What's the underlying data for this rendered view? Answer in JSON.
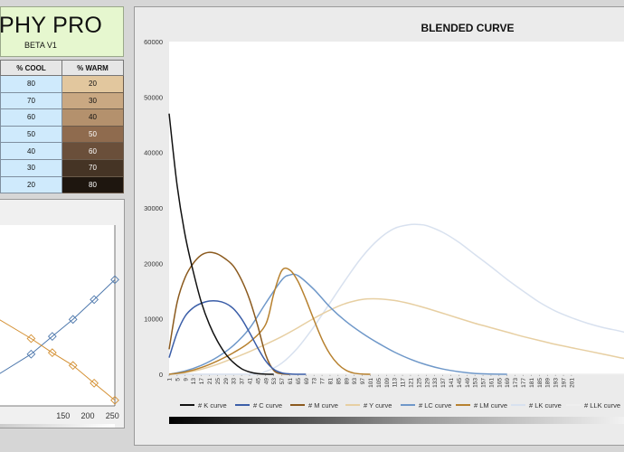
{
  "header": {
    "title": "PHY PRO",
    "subtitle": "BETA V1"
  },
  "mix_table": {
    "columns": [
      "% COOL",
      "% WARM"
    ],
    "rows": [
      {
        "cool": "80",
        "warm": "20"
      },
      {
        "cool": "70",
        "warm": "30"
      },
      {
        "cool": "60",
        "warm": "40"
      },
      {
        "cool": "50",
        "warm": "50"
      },
      {
        "cool": "40",
        "warm": "60"
      },
      {
        "cool": "30",
        "warm": "70"
      },
      {
        "cool": "20",
        "warm": "80"
      }
    ],
    "warm_colors": [
      "#e2c79e",
      "#c9a882",
      "#b4916d",
      "#8f6b4e",
      "#6a4f3a",
      "#453425",
      "#1e160f"
    ]
  },
  "chart_data": [
    {
      "type": "line",
      "x_tick_labels": [
        "150",
        "200",
        "250"
      ],
      "xlim": [
        20,
        255
      ],
      "ylim": [
        0,
        255
      ],
      "series": [
        {
          "color": "#4f79ad",
          "x": [
            20,
            85,
            128,
            170,
            213,
            255
          ],
          "y": [
            45,
            73,
            98,
            122,
            150,
            178
          ]
        },
        {
          "color": "#d49033",
          "x": [
            20,
            85,
            128,
            170,
            213,
            255
          ],
          "y": [
            122,
            95,
            75,
            57,
            32,
            8
          ]
        }
      ]
    },
    {
      "type": "line",
      "title": "BLENDED CURVE",
      "ylim": [
        0,
        60000
      ],
      "y_ticks": [
        0,
        10000,
        20000,
        30000,
        40000,
        50000,
        60000
      ],
      "xlim": [
        1,
        228
      ],
      "x_tick_labels": [
        "1",
        "5",
        "9",
        "13",
        "17",
        "21",
        "25",
        "29",
        "33",
        "37",
        "41",
        "45",
        "49",
        "53",
        "57",
        "61",
        "65",
        "69",
        "73",
        "77",
        "81",
        "85",
        "89",
        "93",
        "97",
        "101",
        "105",
        "109",
        "113",
        "117",
        "121",
        "125",
        "129",
        "133",
        "137",
        "141",
        "145",
        "149",
        "153",
        "157",
        "161",
        "165",
        "169",
        "173",
        "177",
        "181",
        "185",
        "189",
        "193",
        "197",
        "201"
      ],
      "legend_position": "bottom",
      "series": [
        {
          "name": "# K curve",
          "color": "#111111",
          "x": [
            1,
            5,
            9,
            13,
            17,
            21,
            25,
            29,
            33,
            37,
            41,
            45,
            49,
            53
          ],
          "y": [
            47000,
            34000,
            25000,
            18500,
            13000,
            9000,
            6000,
            3700,
            2100,
            1000,
            400,
            120,
            20,
            0
          ]
        },
        {
          "name": "# C curve",
          "color": "#3b5ea8",
          "x": [
            1,
            5,
            9,
            13,
            17,
            21,
            25,
            29,
            33,
            37,
            41,
            45,
            49,
            53,
            57,
            61,
            65,
            69
          ],
          "y": [
            3000,
            7500,
            10500,
            12000,
            12800,
            13200,
            13200,
            12800,
            11800,
            10000,
            7500,
            4800,
            2400,
            900,
            250,
            60,
            0,
            0
          ]
        },
        {
          "name": "# M curve",
          "color": "#8b5a1e",
          "x": [
            1,
            5,
            9,
            13,
            17,
            21,
            25,
            29,
            33,
            37,
            41,
            45,
            49,
            53,
            57,
            61
          ],
          "y": [
            4500,
            13000,
            17500,
            20000,
            21500,
            22000,
            21700,
            20800,
            19500,
            17000,
            13500,
            8800,
            3500,
            700,
            80,
            0
          ]
        },
        {
          "name": "# Y curve",
          "color": "#e7cfa2",
          "x": [
            1,
            9,
            17,
            25,
            33,
            41,
            49,
            57,
            65,
            73,
            81,
            89,
            97,
            105,
            113,
            121,
            129,
            137,
            145,
            153,
            161,
            169,
            177,
            185,
            193,
            201,
            209,
            217,
            225,
            228
          ],
          "y": [
            0,
            300,
            900,
            1800,
            2900,
            4100,
            5400,
            6800,
            8400,
            10100,
            11600,
            12800,
            13500,
            13600,
            13300,
            12700,
            11900,
            11000,
            10100,
            9200,
            8400,
            7600,
            6800,
            6100,
            5400,
            4800,
            4200,
            3600,
            3000,
            2800
          ]
        },
        {
          "name": "# LC curve",
          "color": "#6f98c9",
          "x": [
            1,
            9,
            17,
            25,
            33,
            41,
            49,
            57,
            61,
            65,
            73,
            81,
            89,
            97,
            105,
            113,
            121,
            129,
            137,
            145,
            153,
            161,
            169
          ],
          "y": [
            0,
            600,
            1600,
            3100,
            5200,
            8300,
            12800,
            17000,
            17900,
            17800,
            15300,
            12100,
            9500,
            7400,
            5600,
            4000,
            2700,
            1700,
            950,
            450,
            150,
            40,
            0
          ]
        },
        {
          "name": "# LM curve",
          "color": "#b7812f",
          "x": [
            1,
            9,
            17,
            25,
            33,
            41,
            49,
            53,
            57,
            61,
            65,
            69,
            73,
            77,
            81,
            85,
            89,
            93,
            97,
            101
          ],
          "y": [
            0,
            400,
            1200,
            2400,
            3900,
            5800,
            9000,
            14500,
            18700,
            18800,
            16800,
            13500,
            9800,
            6300,
            3600,
            1800,
            700,
            200,
            40,
            0
          ]
        },
        {
          "name": "# LK curve",
          "color": "#d8e1ef",
          "x": [
            1,
            41,
            49,
            57,
            65,
            73,
            81,
            89,
            97,
            105,
            113,
            121,
            125,
            129,
            137,
            145,
            153,
            161,
            169,
            177,
            185,
            193,
            201,
            209,
            217,
            225,
            228
          ],
          "y": [
            0,
            0,
            500,
            2000,
            4800,
            8600,
            12900,
            17200,
            21200,
            24300,
            26300,
            27000,
            27000,
            26800,
            25600,
            23800,
            21600,
            19400,
            17100,
            15000,
            13000,
            11400,
            10200,
            9200,
            8400,
            7800,
            7500
          ]
        },
        {
          "name": "# LLK curve",
          "color": "#eeeeee",
          "x": [
            1,
            228
          ],
          "y": [
            0,
            0
          ]
        }
      ]
    }
  ]
}
